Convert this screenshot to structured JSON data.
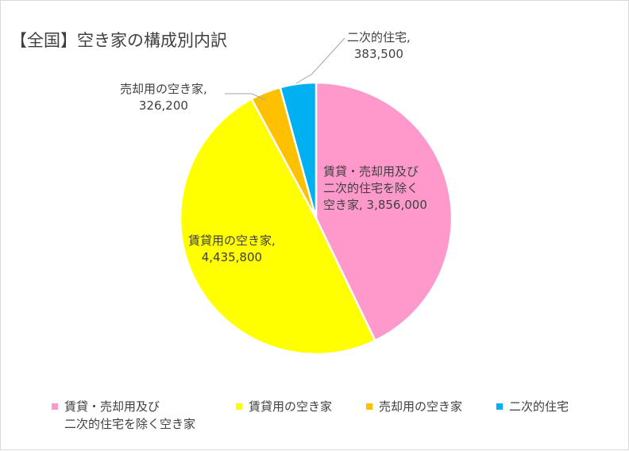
{
  "chart_data": {
    "type": "pie",
    "title": "【全国】空き家の構成別内訳",
    "slices": [
      {
        "name": "賃貸・売却用及び二次的住宅を除く空き家",
        "value": 3856000,
        "color": "#FF99CC",
        "label_lines": [
          "賃貸・売却用及び",
          "二次的住宅を除く",
          "空き家, 3,856,000"
        ]
      },
      {
        "name": "賃貸用の空き家",
        "value": 4435800,
        "color": "#FFFF00",
        "label_lines": [
          "賃貸用の空き家,",
          "4,435,800"
        ]
      },
      {
        "name": "売却用の空き家",
        "value": 326200,
        "color": "#FFC000",
        "label_lines": [
          "売却用の空き家,",
          "326,200"
        ]
      },
      {
        "name": "二次的住宅",
        "value": 383500,
        "color": "#00B0F0",
        "label_lines": [
          "二次的住宅,",
          "383,500"
        ]
      }
    ],
    "legend": {
      "position": "bottom",
      "items": [
        {
          "label": "賃貸・売却用及び\n二次的住宅を除く空き家",
          "color": "#FF99CC"
        },
        {
          "label": "賃貸用の空き家",
          "color": "#FFFF00"
        },
        {
          "label": "売却用の空き家",
          "color": "#FFC000"
        },
        {
          "label": "二次的住宅",
          "color": "#00B0F0"
        }
      ]
    }
  }
}
